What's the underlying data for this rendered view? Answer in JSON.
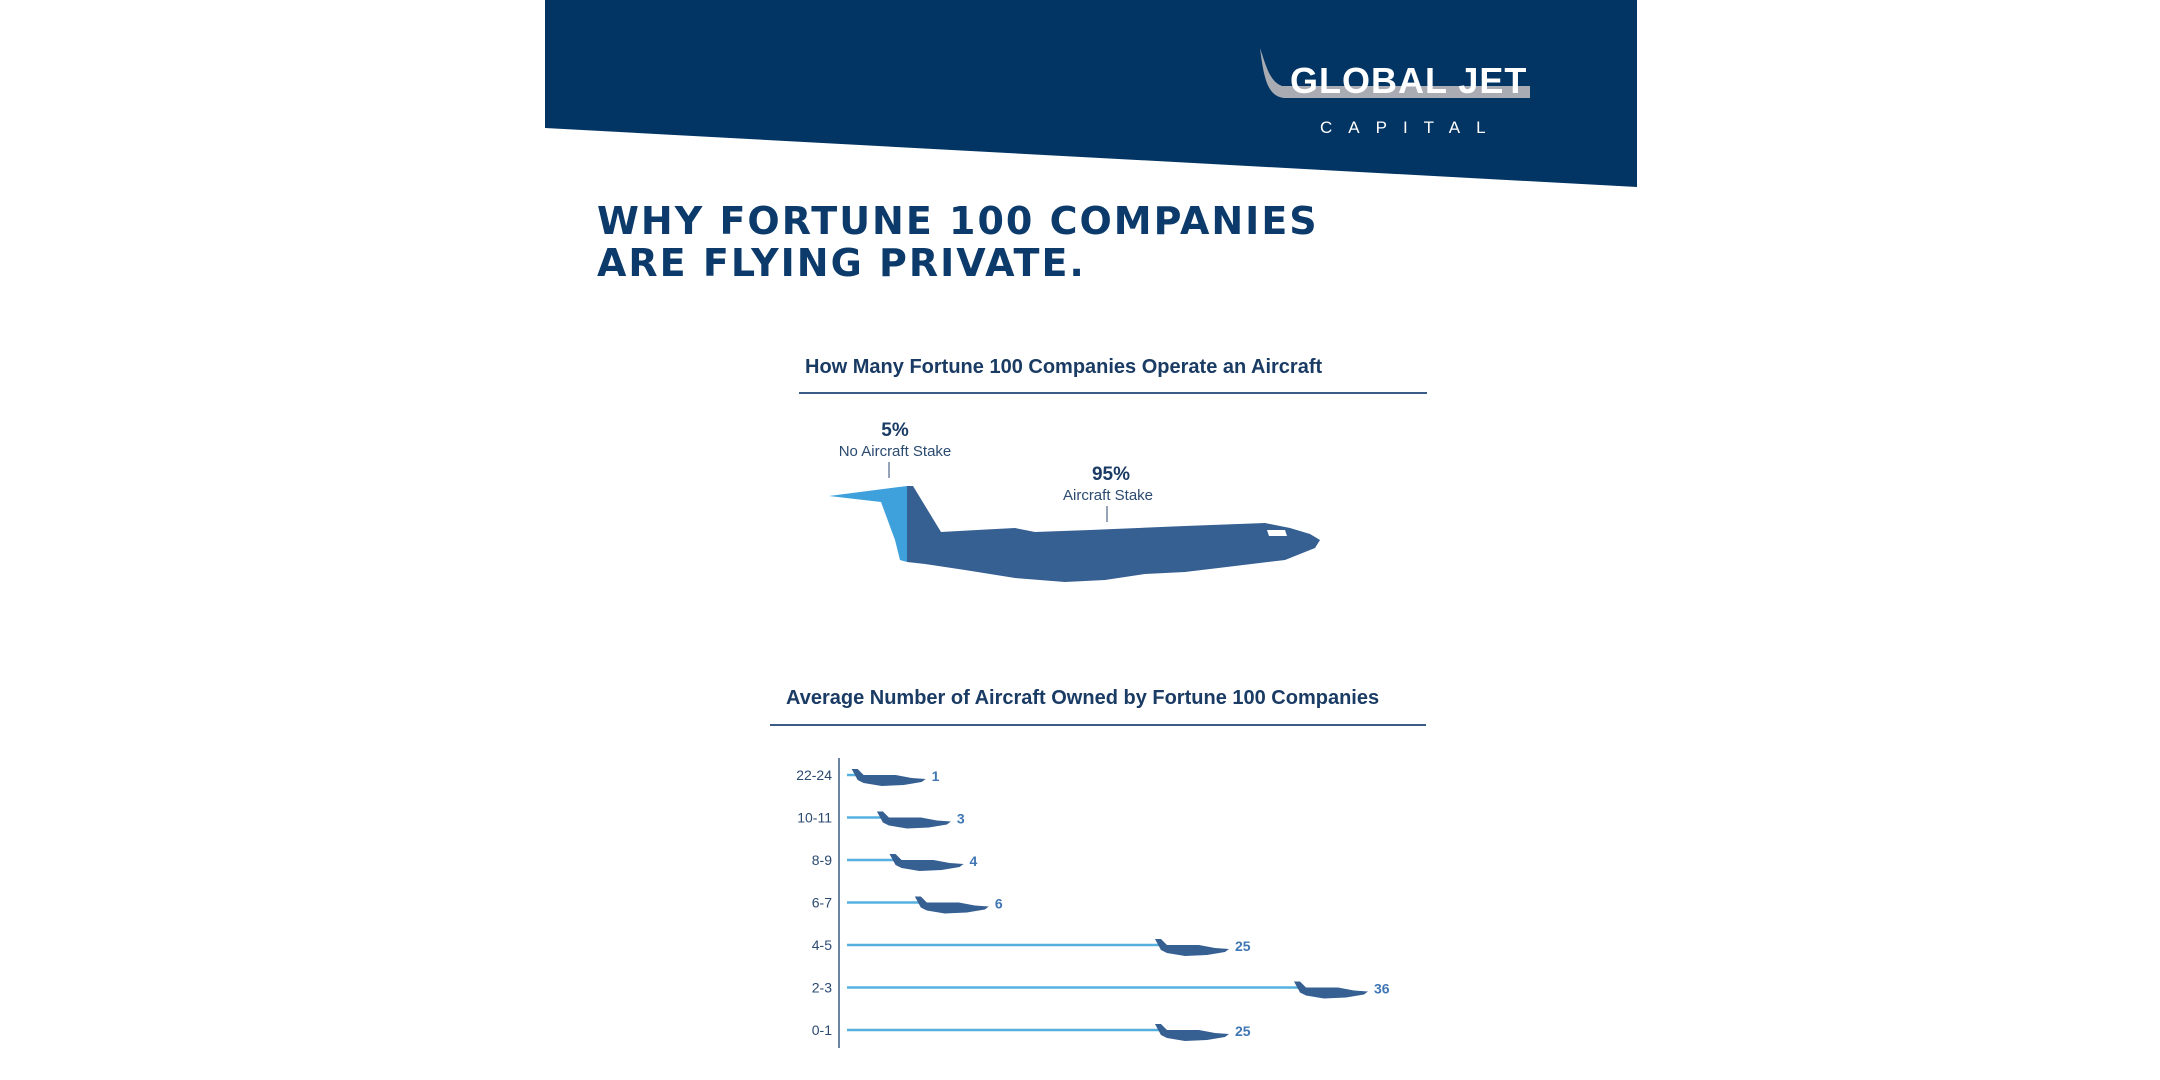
{
  "brand": {
    "name_line1": "GLOBAL JET",
    "name_line2": "CAPITAL",
    "primary_color": "#033564",
    "accent_gray": "#a9adb3"
  },
  "page": {
    "title_line1": "WHY FORTUNE 100 COMPANIES",
    "title_line2": "ARE FLYING PRIVATE."
  },
  "chart_data": [
    {
      "type": "pie",
      "title": "How Many Fortune 100 Companies Operate an Aircraft",
      "categories": [
        "No Aircraft Stake",
        "Aircraft Stake"
      ],
      "values": [
        5,
        95
      ],
      "labels": [
        "5%",
        "95%"
      ],
      "colors": [
        "#3fa1dc",
        "#365f92"
      ]
    },
    {
      "type": "bar",
      "orientation": "horizontal",
      "title": "Average Number of Aircraft Owned by Fortune 100 Companies",
      "categories": [
        "22-24",
        "10-11",
        "8-9",
        "6-7",
        "4-5",
        "2-3",
        "0-1"
      ],
      "values": [
        1,
        3,
        4,
        6,
        25,
        36,
        25
      ],
      "colors": {
        "bar": "#56b0df",
        "jet": "#365f92",
        "value": "#3f76b4"
      }
    }
  ]
}
